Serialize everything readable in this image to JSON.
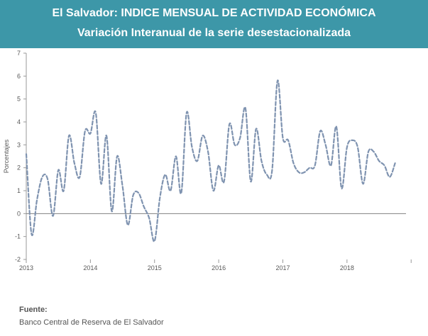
{
  "header": {
    "title": "El Salvador: INDICE MENSUAL DE ACTIVIDAD ECONÓMICA",
    "subtitle": "Variación Interanual de la serie desestacionalizada"
  },
  "source": {
    "label": "Fuente:",
    "text": "Banco Central de Reserva de El Salvador"
  },
  "colors": {
    "banner": "#3d97a8",
    "series": "#7f93b0",
    "axis": "#999999",
    "zero_line": "#808080",
    "text": "#595959"
  },
  "chart_data": {
    "type": "line",
    "title": "",
    "xlabel": "",
    "ylabel": "Porcentajes",
    "ylim": [
      -2,
      7
    ],
    "yticks": [
      -2,
      -1,
      0,
      1,
      2,
      3,
      4,
      5,
      6,
      7
    ],
    "xticks": [
      "2013",
      "2014",
      "2015",
      "2016",
      "2017",
      "2018"
    ],
    "grid": false,
    "legend": "none",
    "line_style": "dashed",
    "series": [
      {
        "values": [
          {
            "x": "2013-01",
            "y": 2.6
          },
          {
            "x": "2013-02",
            "y": -0.9
          },
          {
            "x": "2013-03",
            "y": 0.6
          },
          {
            "x": "2013-04",
            "y": 1.6
          },
          {
            "x": "2013-05",
            "y": 1.5
          },
          {
            "x": "2013-06",
            "y": -0.1
          },
          {
            "x": "2013-07",
            "y": 1.9
          },
          {
            "x": "2013-08",
            "y": 1.0
          },
          {
            "x": "2013-09",
            "y": 3.4
          },
          {
            "x": "2013-10",
            "y": 2.2
          },
          {
            "x": "2013-11",
            "y": 1.6
          },
          {
            "x": "2013-12",
            "y": 3.6
          },
          {
            "x": "2014-01",
            "y": 3.5
          },
          {
            "x": "2014-02",
            "y": 4.4
          },
          {
            "x": "2014-03",
            "y": 1.3
          },
          {
            "x": "2014-04",
            "y": 3.4
          },
          {
            "x": "2014-05",
            "y": 0.1
          },
          {
            "x": "2014-06",
            "y": 2.5
          },
          {
            "x": "2014-07",
            "y": 1.2
          },
          {
            "x": "2014-08",
            "y": -0.5
          },
          {
            "x": "2014-09",
            "y": 0.8
          },
          {
            "x": "2014-10",
            "y": 0.9
          },
          {
            "x": "2014-11",
            "y": 0.3
          },
          {
            "x": "2014-12",
            "y": -0.2
          },
          {
            "x": "2015-01",
            "y": -1.2
          },
          {
            "x": "2015-02",
            "y": 0.7
          },
          {
            "x": "2015-03",
            "y": 1.7
          },
          {
            "x": "2015-04",
            "y": 1.0
          },
          {
            "x": "2015-05",
            "y": 2.5
          },
          {
            "x": "2015-06",
            "y": 0.9
          },
          {
            "x": "2015-07",
            "y": 4.4
          },
          {
            "x": "2015-08",
            "y": 2.9
          },
          {
            "x": "2015-09",
            "y": 2.3
          },
          {
            "x": "2015-10",
            "y": 3.4
          },
          {
            "x": "2015-11",
            "y": 2.7
          },
          {
            "x": "2015-12",
            "y": 1.0
          },
          {
            "x": "2016-01",
            "y": 2.1
          },
          {
            "x": "2016-02",
            "y": 1.4
          },
          {
            "x": "2016-03",
            "y": 3.9
          },
          {
            "x": "2016-04",
            "y": 3.0
          },
          {
            "x": "2016-05",
            "y": 3.3
          },
          {
            "x": "2016-06",
            "y": 4.6
          },
          {
            "x": "2016-07",
            "y": 1.4
          },
          {
            "x": "2016-08",
            "y": 3.7
          },
          {
            "x": "2016-09",
            "y": 2.3
          },
          {
            "x": "2016-10",
            "y": 1.7
          },
          {
            "x": "2016-11",
            "y": 1.9
          },
          {
            "x": "2016-12",
            "y": 5.8
          },
          {
            "x": "2017-01",
            "y": 3.3
          },
          {
            "x": "2017-02",
            "y": 3.2
          },
          {
            "x": "2017-03",
            "y": 2.2
          },
          {
            "x": "2017-04",
            "y": 1.8
          },
          {
            "x": "2017-05",
            "y": 1.8
          },
          {
            "x": "2017-06",
            "y": 2.0
          },
          {
            "x": "2017-07",
            "y": 2.1
          },
          {
            "x": "2017-08",
            "y": 3.6
          },
          {
            "x": "2017-09",
            "y": 3.0
          },
          {
            "x": "2017-10",
            "y": 2.1
          },
          {
            "x": "2017-11",
            "y": 3.8
          },
          {
            "x": "2017-12",
            "y": 1.1
          },
          {
            "x": "2018-01",
            "y": 2.9
          },
          {
            "x": "2018-02",
            "y": 3.2
          },
          {
            "x": "2018-03",
            "y": 2.9
          },
          {
            "x": "2018-04",
            "y": 1.3
          },
          {
            "x": "2018-05",
            "y": 2.7
          },
          {
            "x": "2018-06",
            "y": 2.7
          },
          {
            "x": "2018-07",
            "y": 2.3
          },
          {
            "x": "2018-08",
            "y": 2.1
          },
          {
            "x": "2018-09",
            "y": 1.6
          },
          {
            "x": "2018-10",
            "y": 2.2
          }
        ]
      }
    ]
  }
}
